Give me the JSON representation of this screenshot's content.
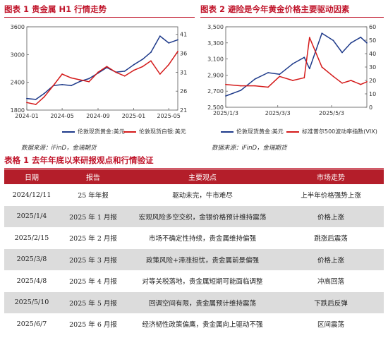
{
  "figures": [
    {
      "title": "图表 1  贵金属 H1 行情走势",
      "legend": [
        {
          "label": "伦敦现货黄金:美元",
          "color": "#1e3a8a"
        },
        {
          "label": "伦敦现货白银:美元",
          "color": "#d41a1a"
        }
      ]
    },
    {
      "title": "图表 2  避险是今年黄金价格主要驱动因素",
      "legend": [
        {
          "label": "伦敦现货黄金:美元",
          "color": "#1e3a8a"
        },
        {
          "label": "标准普尔500波动率指数(VIX)",
          "color": "#d41a1a"
        }
      ]
    }
  ],
  "source_left": "数据来源：iFinD，金瑞期货",
  "source_right": "数据来源：iFinD，金瑞期货",
  "table_title": "表格 1  去年年底以来研报观点和行情验证",
  "table": {
    "headers": [
      "日期",
      "报告",
      "主要观点",
      "市场走势"
    ],
    "rows": [
      [
        "2024/12/11",
        "25 年年报",
        "驱动未完，牛市难尽",
        "上半年价格强势上涨"
      ],
      [
        "2025/1/4",
        "2025 年 1 月报",
        "宏观风险多空交织，金银价格预计维持震荡",
        "价格上涨"
      ],
      [
        "2025/2/15",
        "2025 年 2 月报",
        "市场不确定性持续，贵金属维持偏强",
        "跳涨后震荡"
      ],
      [
        "2025/3/8",
        "2025 年 3 月报",
        "政策风险+滞涨担忧，贵金属前景偏强",
        "价格上涨"
      ],
      [
        "2025/4/8",
        "2025 年 4 月报",
        "对等关税落地，贵金属短期可能面临调整",
        "冲高回落"
      ],
      [
        "2025/5/10",
        "2025 年 5 月报",
        "回调空间有限，贵金属预计维持震荡",
        "下跌后反弹"
      ],
      [
        "2025/6/7",
        "2025 年 6 月报",
        "经济韧性政策偏鹰，贵金属向上驱动不强",
        "区间震荡"
      ]
    ]
  },
  "chart_data": [
    {
      "type": "line",
      "x_ticks": [
        "2024-01",
        "2024-05",
        "2024-09",
        "2025-01",
        "2025-05"
      ],
      "y_left_ticks": [
        "1800",
        "2400",
        "3000",
        "3600"
      ],
      "y_right_ticks": [
        "21",
        "26",
        "31",
        "36",
        "41"
      ],
      "ylim_left": [
        1800,
        3600
      ],
      "ylim_right": [
        21,
        43
      ],
      "series": [
        {
          "name": "伦敦现货黄金:美元",
          "axis": "left",
          "color": "#1e3a8a",
          "x": [
            "2024-01",
            "2024-02",
            "2024-03",
            "2024-04",
            "2024-05",
            "2024-06",
            "2024-07",
            "2024-08",
            "2024-09",
            "2024-10",
            "2024-11",
            "2024-12",
            "2025-01",
            "2025-02",
            "2025-03",
            "2025-04",
            "2025-05",
            "2025-06"
          ],
          "values": [
            2050,
            2030,
            2160,
            2330,
            2350,
            2330,
            2420,
            2480,
            2600,
            2720,
            2620,
            2640,
            2780,
            2900,
            3050,
            3400,
            3250,
            3320
          ]
        },
        {
          "name": "伦敦现货白银:美元",
          "axis": "right",
          "color": "#d41a1a",
          "x": [
            "2024-01",
            "2024-02",
            "2024-03",
            "2024-04",
            "2024-05",
            "2024-06",
            "2024-07",
            "2024-08",
            "2024-09",
            "2024-10",
            "2024-11",
            "2024-12",
            "2025-01",
            "2025-02",
            "2025-03",
            "2025-04",
            "2025-05",
            "2025-06"
          ],
          "values": [
            23.0,
            22.5,
            24.5,
            27.5,
            30.5,
            29.5,
            29.0,
            28.5,
            31.0,
            32.5,
            31.0,
            30.0,
            31.5,
            32.5,
            34.0,
            30.5,
            33.0,
            36.5
          ]
        }
      ]
    },
    {
      "type": "line",
      "x_ticks": [
        "2025/1/3",
        "2025/3/3",
        "2025/5/3"
      ],
      "y_left_ticks": [
        "2,500",
        "2,700",
        "2,900",
        "3,100",
        "3,300",
        "3,500"
      ],
      "y_right_ticks": [
        "0",
        "10",
        "20",
        "30",
        "40",
        "50",
        "60"
      ],
      "ylim_left": [
        2500,
        3500
      ],
      "ylim_right": [
        0,
        60
      ],
      "series": [
        {
          "name": "伦敦现货黄金:美元",
          "axis": "left",
          "color": "#1e3a8a",
          "x": [
            "2025-01-03",
            "2025-01-20",
            "2025-02-05",
            "2025-02-20",
            "2025-03-05",
            "2025-03-20",
            "2025-04-02",
            "2025-04-08",
            "2025-04-22",
            "2025-05-05",
            "2025-05-15",
            "2025-05-25",
            "2025-06-05",
            "2025-06-12"
          ],
          "values": [
            2640,
            2710,
            2850,
            2930,
            2910,
            3040,
            3120,
            2980,
            3420,
            3330,
            3180,
            3300,
            3370,
            3300
          ]
        },
        {
          "name": "标准普尔500波动率指数(VIX)",
          "axis": "right",
          "color": "#d41a1a",
          "x": [
            "2025-01-03",
            "2025-01-20",
            "2025-02-05",
            "2025-02-20",
            "2025-03-05",
            "2025-03-20",
            "2025-04-02",
            "2025-04-08",
            "2025-04-22",
            "2025-05-05",
            "2025-05-15",
            "2025-05-25",
            "2025-06-05",
            "2025-06-12"
          ],
          "values": [
            17,
            16,
            16,
            15,
            23,
            20,
            22,
            52,
            30,
            23,
            18,
            20,
            17,
            19
          ]
        }
      ]
    }
  ]
}
